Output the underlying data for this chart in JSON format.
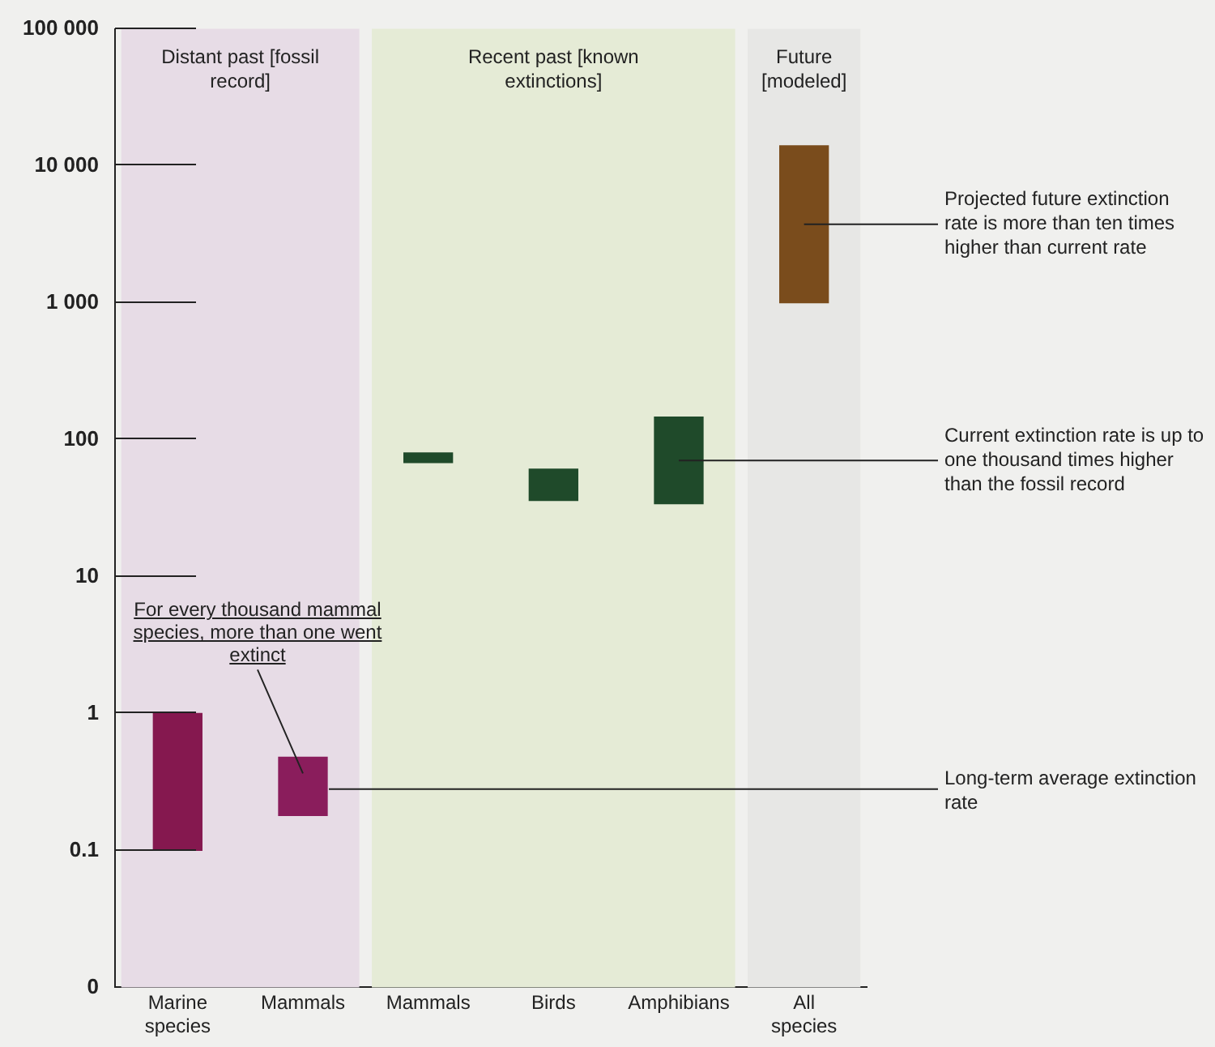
{
  "chart_data": {
    "type": "bar",
    "categories": [
      "Marine species",
      "Mammals",
      "Mammals",
      "Birds",
      "Amphibians",
      "All species"
    ],
    "base": [
      0.1,
      0.18,
      68,
      36,
      34,
      1000
    ],
    "values": [
      0.9,
      0.3,
      12,
      25,
      112,
      13000
    ],
    "colors": [
      "#85184f",
      "#8a1d5c",
      "#1f4a2a",
      "#1f4a2a",
      "#1f4a2a",
      "#7a4c1c"
    ],
    "log": true,
    "ylim": [
      0.01,
      100000
    ],
    "yticks": [
      {
        "value": 0.01,
        "label": "0"
      },
      0.1,
      1,
      10,
      100,
      {
        "value": 1000,
        "label": "1 000"
      },
      {
        "value": 10000,
        "label": "10 000"
      },
      {
        "value": 100000,
        "label": "100 000"
      }
    ],
    "grid": false,
    "legend": false,
    "bands": [
      {
        "axis": "x",
        "from": "Marine species",
        "to": "Mammals",
        "label": "Distant past [fossil record]",
        "color": "#e7dce6"
      },
      {
        "axis": "x",
        "from": "Mammals",
        "to": "Amphibians",
        "label": "Recent past [known extinctions]",
        "color": "#e5ebd6"
      },
      {
        "axis": "x",
        "from": "All species",
        "to": "All species",
        "label": "Future [modeled]",
        "color": "#e7e7e5"
      }
    ],
    "ref_lines": [
      {
        "axis": "y",
        "value": 0.28,
        "label": "Long-term average extinction rate"
      }
    ],
    "annotations": [
      "For every thousand mammal species, more than one went extinct",
      "Current extinction rate is up to one thousand times higher than the fossil record",
      "Projected future extinction rate is more than ten times higher than current rate"
    ]
  }
}
